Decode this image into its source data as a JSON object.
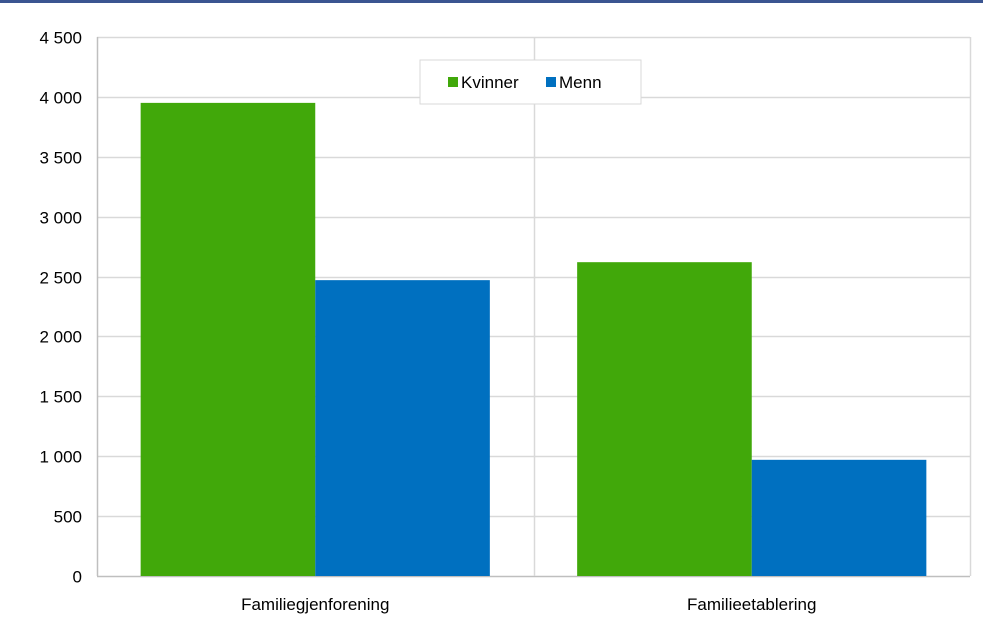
{
  "chart_data": {
    "type": "bar",
    "categories": [
      "Familiegjenforening",
      "Familieetablering"
    ],
    "series": [
      {
        "name": "Kvinner",
        "color": "#41a80a",
        "values": [
          3950,
          2620
        ]
      },
      {
        "name": "Menn",
        "color": "#0070c0",
        "values": [
          2470,
          970
        ]
      }
    ],
    "ylim": [
      0,
      4500
    ],
    "yticks": [
      0,
      500,
      1000,
      1500,
      2000,
      2500,
      3000,
      3500,
      4000,
      4500
    ],
    "ytick_labels": [
      "0",
      "500",
      "1 000",
      "1 500",
      "2 000",
      "2 500",
      "3 000",
      "3 500",
      "4 000",
      "4 500"
    ],
    "legend": "top-center",
    "grid": true,
    "colors": {
      "rule": "#3b5591",
      "grid": "#d9d9d9",
      "axis": "#bfbfbf"
    }
  }
}
